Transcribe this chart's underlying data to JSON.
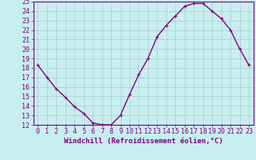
{
  "x": [
    0,
    1,
    2,
    3,
    4,
    5,
    6,
    7,
    8,
    9,
    10,
    11,
    12,
    13,
    14,
    15,
    16,
    17,
    18,
    19,
    20,
    21,
    22,
    23
  ],
  "y": [
    18.3,
    17.0,
    15.8,
    14.9,
    13.9,
    13.2,
    12.2,
    12.0,
    12.0,
    13.0,
    15.2,
    17.3,
    19.0,
    21.3,
    22.5,
    23.5,
    24.5,
    24.8,
    24.8,
    24.0,
    23.2,
    22.0,
    20.0,
    18.3
  ],
  "line_color": "#800080",
  "marker_color": "#800080",
  "bg_color": "#c8eef0",
  "grid_color": "#aacccc",
  "xlabel": "Windchill (Refroidissement éolien,°C)",
  "ylim": [
    12,
    25
  ],
  "yticks": [
    12,
    13,
    14,
    15,
    16,
    17,
    18,
    19,
    20,
    21,
    22,
    23,
    24,
    25
  ],
  "xticks": [
    0,
    1,
    2,
    3,
    4,
    5,
    6,
    7,
    8,
    9,
    10,
    11,
    12,
    13,
    14,
    15,
    16,
    17,
    18,
    19,
    20,
    21,
    22,
    23
  ],
  "xlim": [
    -0.5,
    23.5
  ],
  "line_width": 1.0,
  "marker_size": 2.5,
  "xlabel_fontsize": 6.5,
  "tick_label_fontsize": 6.0
}
